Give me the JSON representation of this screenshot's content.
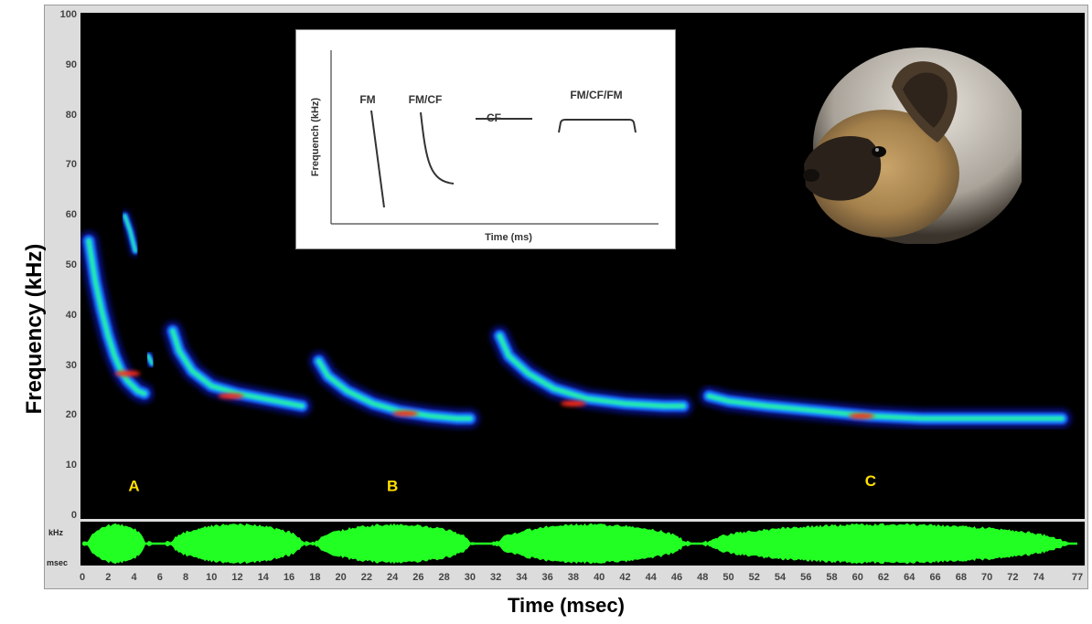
{
  "chart_data": {
    "type": "spectrogram",
    "xlabel": "Time (msec)",
    "ylabel": "Frequency (kHz)",
    "xlim": [
      0,
      77
    ],
    "ylim": [
      0,
      100
    ],
    "x_ticks": [
      "0",
      "2",
      "4",
      "6",
      "8",
      "10",
      "12",
      "14",
      "16",
      "18",
      "20",
      "22",
      "24",
      "26",
      "28",
      "30",
      "32",
      "34",
      "36",
      "38",
      "40",
      "42",
      "44",
      "46",
      "48",
      "50",
      "52",
      "54",
      "56",
      "58",
      "60",
      "62",
      "64",
      "66",
      "68",
      "70",
      "72",
      "74",
      "77"
    ],
    "y_ticks": [
      "0",
      "10",
      "20",
      "30",
      "40",
      "50",
      "60",
      "70",
      "80",
      "90",
      "100"
    ],
    "waveform_axis_label": "kHz",
    "waveform_unit_label": "msec",
    "calls": [
      {
        "label": "A",
        "label_pos": [
          4,
          5
        ],
        "points": [
          [
            0.5,
            55
          ],
          [
            1,
            47
          ],
          [
            1.5,
            41
          ],
          [
            2,
            36
          ],
          [
            2.5,
            32
          ],
          [
            3,
            29
          ],
          [
            3.5,
            27
          ],
          [
            4.3,
            25
          ],
          [
            4.8,
            24.5
          ]
        ],
        "peak": [
          3.5,
          28.5
        ]
      },
      {
        "label": "",
        "label_pos": null,
        "points": [
          [
            3.3,
            60
          ],
          [
            3.7,
            57
          ],
          [
            4.1,
            53
          ]
        ],
        "peak": null
      },
      {
        "label": "",
        "label_pos": null,
        "points": [
          [
            5.1,
            32
          ],
          [
            5.4,
            30.5
          ]
        ],
        "peak": null
      },
      {
        "label": "",
        "label_pos": null,
        "points": [
          [
            7,
            37
          ],
          [
            7.5,
            33
          ],
          [
            8.5,
            29
          ],
          [
            10,
            26
          ],
          [
            12,
            24.5
          ],
          [
            14,
            23.5
          ],
          [
            16,
            22.5
          ],
          [
            17,
            22
          ]
        ],
        "peak": [
          11.5,
          24
        ]
      },
      {
        "label": "B",
        "label_pos": [
          24,
          5
        ],
        "points": [
          [
            18.3,
            31
          ],
          [
            19,
            28
          ],
          [
            20.5,
            25
          ],
          [
            22.5,
            22.5
          ],
          [
            24.5,
            21
          ],
          [
            27,
            20
          ],
          [
            29,
            19.5
          ],
          [
            30,
            19.5
          ]
        ],
        "peak": [
          25,
          20.5
        ]
      },
      {
        "label": "",
        "label_pos": null,
        "points": [
          [
            32.3,
            36
          ],
          [
            33,
            32
          ],
          [
            34.5,
            28.5
          ],
          [
            36.5,
            25.5
          ],
          [
            39,
            23.5
          ],
          [
            42,
            22.5
          ],
          [
            45,
            22
          ],
          [
            46.5,
            22
          ]
        ],
        "peak": [
          38,
          22.5
        ]
      },
      {
        "label": "C",
        "label_pos": [
          61,
          6
        ],
        "points": [
          [
            48.5,
            24
          ],
          [
            50,
            23
          ],
          [
            53,
            22
          ],
          [
            57,
            21
          ],
          [
            61,
            20
          ],
          [
            65,
            19.5
          ],
          [
            69,
            19.5
          ],
          [
            72,
            19.5
          ],
          [
            75.8,
            19.5
          ]
        ],
        "peak": [
          60.3,
          20
        ]
      }
    ]
  },
  "inset": {
    "ylabel": "Frequench (kHz)",
    "xlabel": "Time (ms)",
    "shapes": [
      {
        "label": "FM",
        "kind": "fm"
      },
      {
        "label": "FM/CF",
        "kind": "fmcf"
      },
      {
        "label": "CF",
        "kind": "cf"
      },
      {
        "label": "FM/CF/FM",
        "kind": "fmcffm"
      }
    ]
  },
  "photo": {
    "subject": "bat-photo"
  },
  "colors": {
    "background": "#000000",
    "waveform": "#22ff22",
    "label_yellow": "#ffe000",
    "frame": "#dcdcdc"
  }
}
